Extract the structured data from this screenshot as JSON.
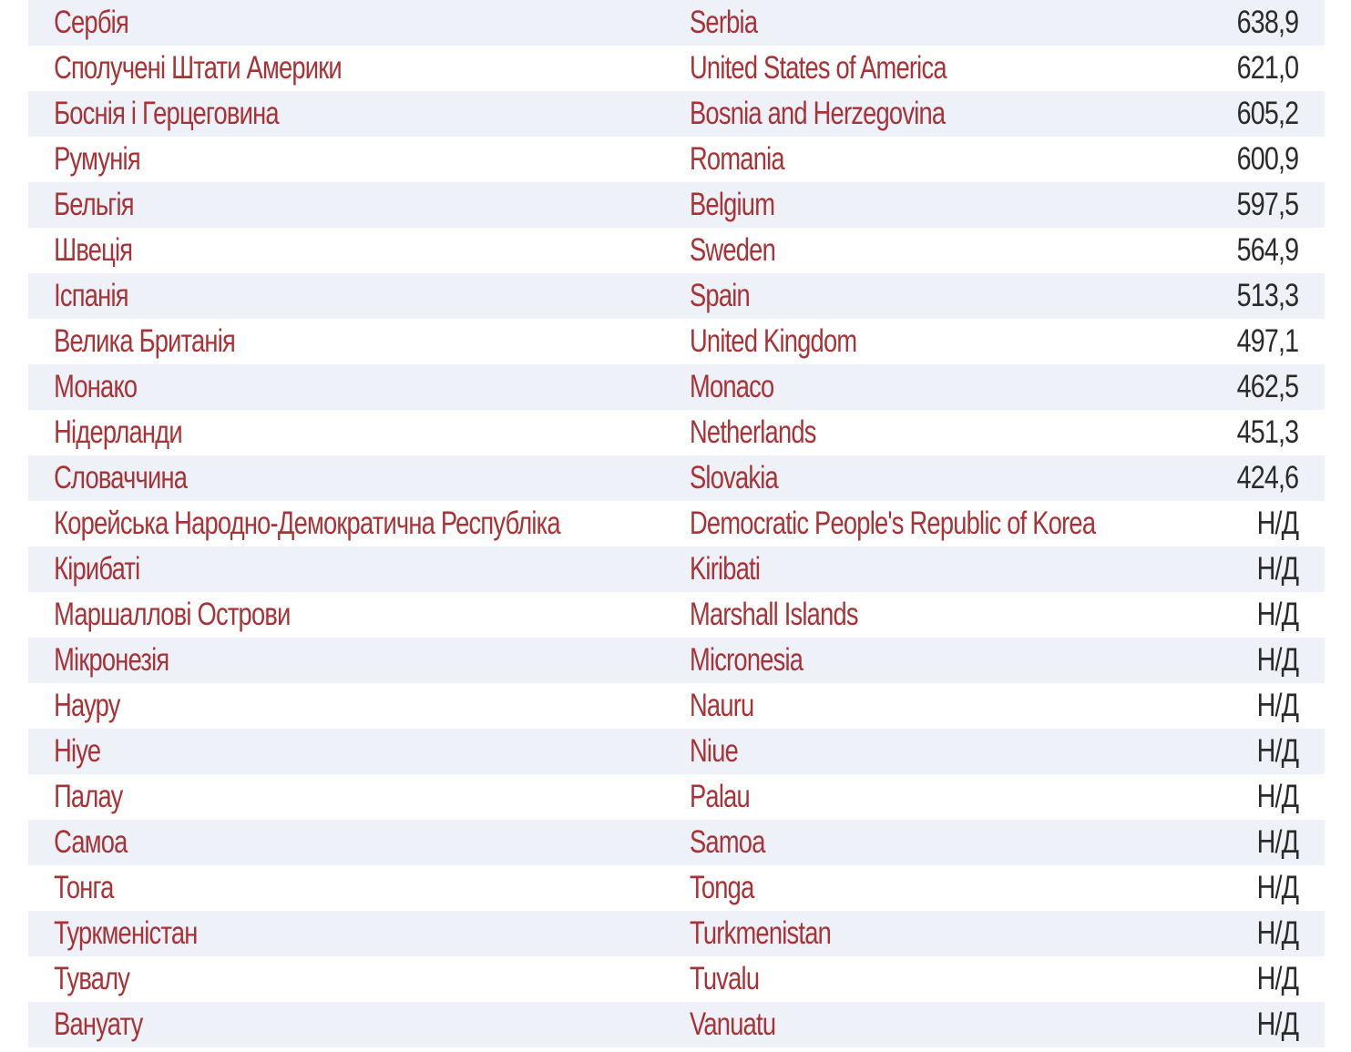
{
  "colors": {
    "country_text": "#a93236",
    "value_text": "#2b2b2b",
    "row_stripe": "#eef1f8"
  },
  "rows": [
    {
      "ua": "Сербія",
      "en": "Serbia",
      "value": "638,9"
    },
    {
      "ua": "Сполучені Штати Америки",
      "en": "United States of America",
      "value": "621,0"
    },
    {
      "ua": "Боснія і Герцеговина",
      "en": "Bosnia and Herzegovina",
      "value": "605,2"
    },
    {
      "ua": "Румунія",
      "en": "Romania",
      "value": "600,9"
    },
    {
      "ua": "Бельгія",
      "en": "Belgium",
      "value": "597,5"
    },
    {
      "ua": "Швеція",
      "en": "Sweden",
      "value": "564,9"
    },
    {
      "ua": "Іспанія",
      "en": "Spain",
      "value": "513,3"
    },
    {
      "ua": "Велика Британія",
      "en": "United Kingdom",
      "value": "497,1"
    },
    {
      "ua": "Монако",
      "en": "Monaco",
      "value": "462,5"
    },
    {
      "ua": "Нідерланди",
      "en": "Netherlands",
      "value": "451,3"
    },
    {
      "ua": "Словаччина",
      "en": "Slovakia",
      "value": "424,6"
    },
    {
      "ua": "Корейська Народно-Демократична Республіка",
      "en": "Democratic People's Republic of Korea",
      "value": "Н/Д"
    },
    {
      "ua": "Кірибаті",
      "en": "Kiribati",
      "value": "Н/Д"
    },
    {
      "ua": "Маршаллові Острови",
      "en": "Marshall Islands",
      "value": "Н/Д"
    },
    {
      "ua": "Мікронезія",
      "en": "Micronesia",
      "value": "Н/Д"
    },
    {
      "ua": "Науру",
      "en": "Nauru",
      "value": "Н/Д"
    },
    {
      "ua": "Ніуе",
      "en": "Niue",
      "value": "Н/Д"
    },
    {
      "ua": "Палау",
      "en": "Palau",
      "value": "Н/Д"
    },
    {
      "ua": "Самоа",
      "en": "Samoa",
      "value": "Н/Д"
    },
    {
      "ua": "Тонга",
      "en": "Tonga",
      "value": "Н/Д"
    },
    {
      "ua": "Туркменістан",
      "en": "Turkmenistan",
      "value": "Н/Д"
    },
    {
      "ua": "Тувалу",
      "en": "Tuvalu",
      "value": "Н/Д"
    },
    {
      "ua": "Вануату",
      "en": "Vanuatu",
      "value": "Н/Д"
    }
  ]
}
